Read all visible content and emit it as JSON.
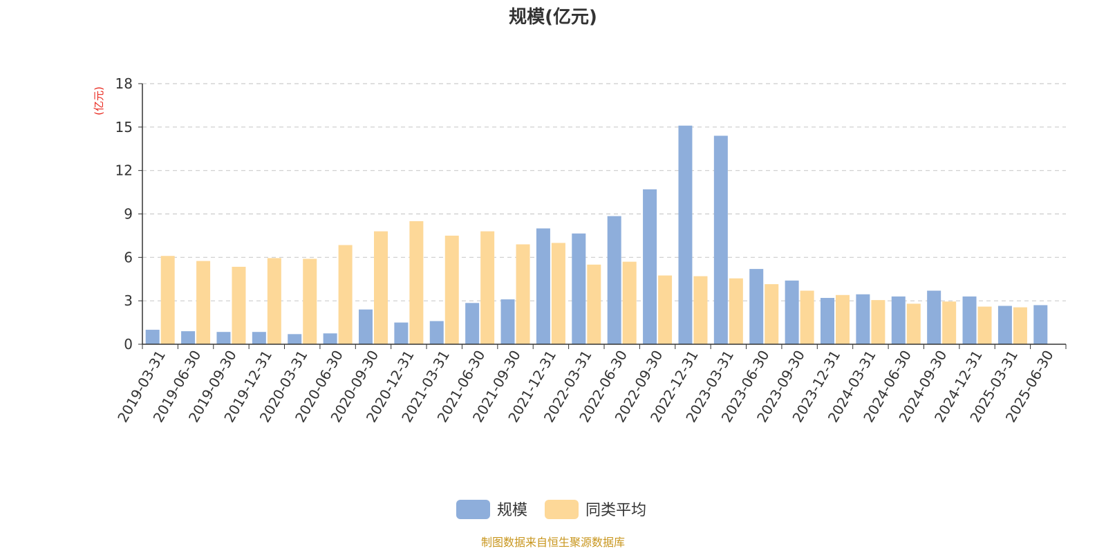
{
  "chart_data": {
    "type": "bar",
    "title": "规模(亿元)",
    "ylabel": "(亿元)",
    "ylim": [
      0,
      18
    ],
    "yticks": [
      0,
      3,
      6,
      9,
      12,
      15,
      18
    ],
    "grid": "horizontal-dashed",
    "legend_position": "bottom-center",
    "categories": [
      "2019-03-31",
      "2019-06-30",
      "2019-09-30",
      "2019-12-31",
      "2020-03-31",
      "2020-06-30",
      "2020-09-30",
      "2020-12-31",
      "2021-03-31",
      "2021-06-30",
      "2021-09-30",
      "2021-12-31",
      "2022-03-31",
      "2022-06-30",
      "2022-09-30",
      "2022-12-31",
      "2023-03-31",
      "2023-06-30",
      "2023-09-30",
      "2023-12-31",
      "2024-03-31",
      "2024-06-30",
      "2024-09-30",
      "2024-12-31",
      "2025-03-31",
      "2025-06-30"
    ],
    "series": [
      {
        "name": "规模",
        "color": "#8eaedb",
        "values": [
          1.0,
          0.9,
          0.85,
          0.85,
          0.7,
          0.75,
          2.4,
          1.5,
          1.6,
          2.85,
          3.1,
          8.0,
          7.65,
          8.85,
          10.7,
          15.1,
          14.4,
          5.2,
          4.4,
          3.2,
          3.45,
          3.3,
          3.7,
          3.3,
          2.65,
          2.7
        ]
      },
      {
        "name": "同类平均",
        "color": "#fdd898",
        "values": [
          6.1,
          5.75,
          5.35,
          5.95,
          5.9,
          6.85,
          7.8,
          8.5,
          7.5,
          7.8,
          6.9,
          7.0,
          5.5,
          5.7,
          4.75,
          4.7,
          4.55,
          4.15,
          3.7,
          3.4,
          3.05,
          2.8,
          2.95,
          2.6,
          2.55,
          null
        ]
      }
    ]
  },
  "footer": {
    "source": "制图数据来自恒生聚源数据库"
  }
}
